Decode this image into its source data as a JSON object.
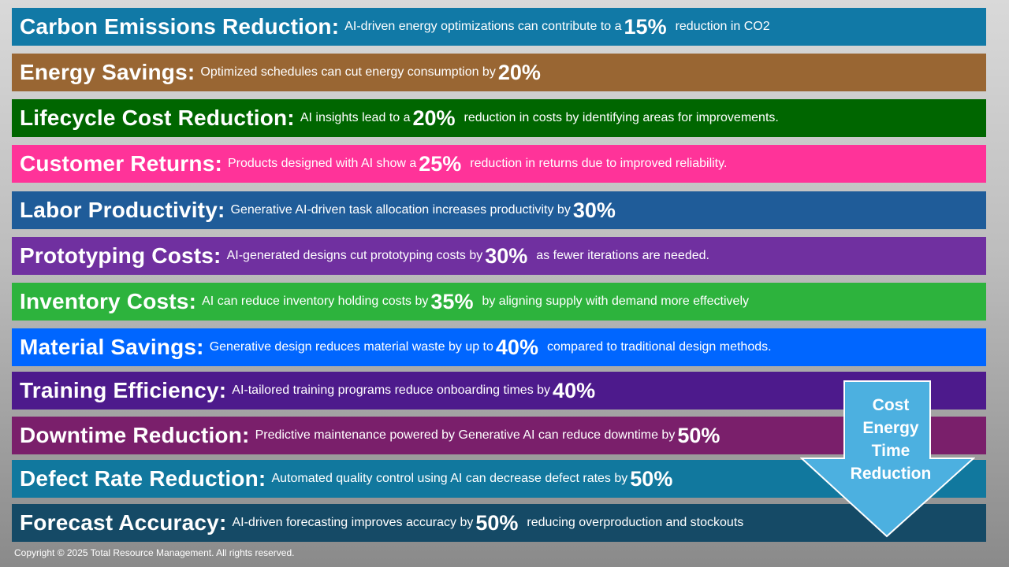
{
  "rows": [
    {
      "title": "Carbon Emissions Reduction:",
      "pre": "AI-driven energy optimizations can contribute to a",
      "pct": "15%",
      "post": "reduction in CO2",
      "color": "#1179a6"
    },
    {
      "title": "Energy Savings:",
      "pre": "Optimized schedules can cut energy consumption by",
      "pct": "20%",
      "post": "",
      "color": "#996633"
    },
    {
      "title": "Lifecycle Cost Reduction:",
      "pre": "AI insights lead to a",
      "pct": "20%",
      "post": "reduction in costs by identifying areas for improvements.",
      "color": "#006600"
    },
    {
      "title": "Customer Returns:",
      "pre": "Products designed with AI show a",
      "pct": "25%",
      "post": "reduction in returns due to improved reliability.",
      "color": "#ff3399"
    },
    {
      "title": "Labor Productivity:",
      "pre": "Generative AI-driven task allocation increases productivity by",
      "pct": "30%",
      "post": "",
      "color": "#1f5c99"
    },
    {
      "title": "Prototyping Costs:",
      "pre": "AI-generated designs cut prototyping costs by",
      "pct": "30%",
      "post": "as fewer iterations are needed.",
      "color": "#7030a0"
    },
    {
      "title": "Inventory Costs:",
      "pre": "AI can reduce inventory holding costs by",
      "pct": "35%",
      "post": "by aligning supply with demand more effectively",
      "color": "#2db33d"
    },
    {
      "title": "Material Savings:",
      "pre": "Generative design reduces material waste by up to",
      "pct": "40%",
      "post": "compared to traditional design methods.",
      "color": "#0066ff"
    },
    {
      "title": "Training Efficiency:",
      "pre": "AI-tailored training programs reduce onboarding times by",
      "pct": "40%",
      "post": "",
      "color": "#4d1a8c"
    },
    {
      "title": "Downtime Reduction:",
      "pre": "Predictive maintenance powered by Generative AI can reduce downtime by",
      "pct": "50%",
      "post": "",
      "color": "#7a1f6b"
    },
    {
      "title": "Defect Rate Reduction:",
      "pre": "Automated quality control using AI can decrease defect rates by",
      "pct": "50%",
      "post": "",
      "color": "#11789e"
    },
    {
      "title": "Forecast Accuracy:",
      "pre": "AI-driven forecasting improves accuracy by",
      "pct": "50%",
      "post": "reducing overproduction and stockouts",
      "color": "#154a66"
    }
  ],
  "arrow": {
    "lines": [
      "Cost",
      "Energy",
      "Time",
      "Reduction"
    ],
    "fill": "#4cb0e0",
    "stroke": "#ffffff"
  },
  "copyright": "Copyright © 2025 Total Resource Management. All rights reserved."
}
